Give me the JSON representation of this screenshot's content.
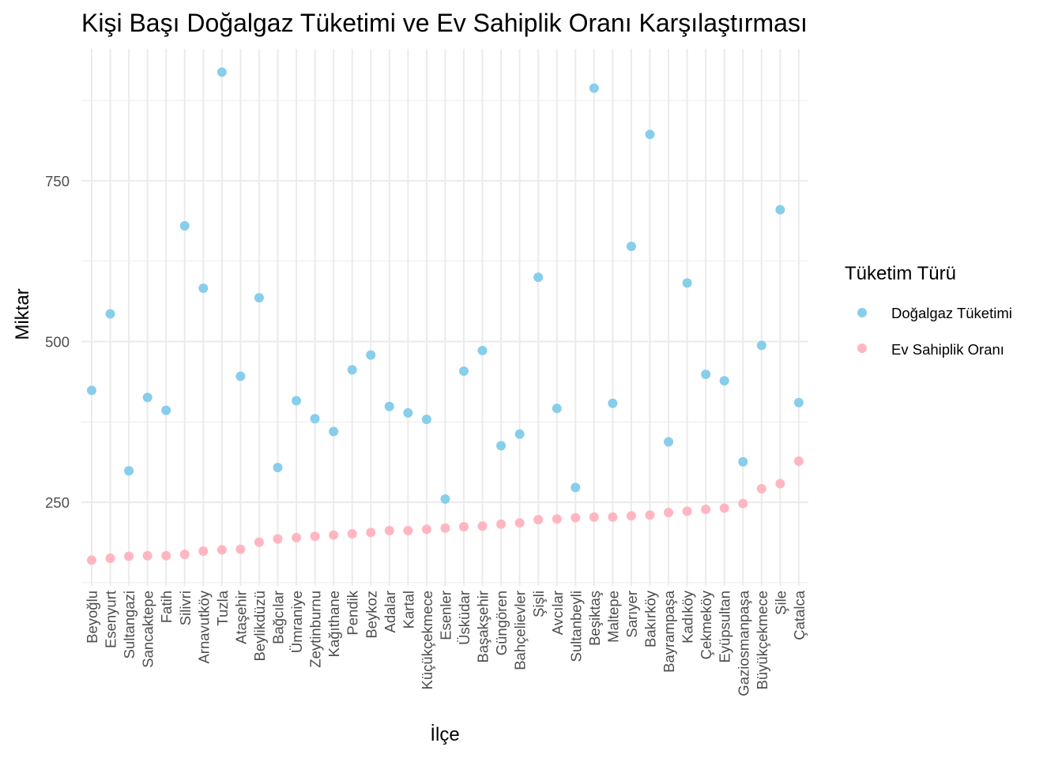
{
  "chart_data": {
    "type": "scatter",
    "title": "Kişi Başı Doğalgaz Tüketimi ve Ev Sahiplik Oranı Karşılaştırması",
    "xlabel": "İlçe",
    "ylabel": "Miktar",
    "ylim": [
      120,
      955
    ],
    "y_ticks": [
      250,
      500,
      750
    ],
    "y_tick_labels": [
      "250",
      "500",
      "750"
    ],
    "grid": true,
    "legend": {
      "title": "Tüketim Türü",
      "position": "right"
    },
    "categories": [
      "Beyoğlu",
      "Esenyurt",
      "Sultangazi",
      "Sancaktepe",
      "Fatih",
      "Silivri",
      "Arnavutköy",
      "Tuzla",
      "Ataşehir",
      "Beylikdüzü",
      "Bağcılar",
      "Ümraniye",
      "Zeytinburnu",
      "Kağıthane",
      "Pendik",
      "Beykoz",
      "Adalar",
      "Kartal",
      "Küçükçekmece",
      "Esenler",
      "Üsküdar",
      "Başakşehir",
      "Güngören",
      "Bahçelievler",
      "Şişli",
      "Avcılar",
      "Sultanbeyli",
      "Beşiktaş",
      "Maltepe",
      "Sarıyer",
      "Bakırköy",
      "Bayrampaşa",
      "Kadıköy",
      "Çekmeköy",
      "Eyüpsultan",
      "Gaziosmanpaşa",
      "Büyükçekmece",
      "Şile",
      "Çatalca"
    ],
    "series": [
      {
        "name": "Doğalgaz Tüketimi",
        "color": "#87CEEB",
        "values": [
          424,
          543,
          299,
          413,
          393,
          680,
          583,
          919,
          446,
          568,
          304,
          408,
          380,
          360,
          456,
          479,
          399,
          389,
          379,
          255,
          454,
          486,
          338,
          356,
          600,
          396,
          273,
          894,
          404,
          648,
          822,
          344,
          591,
          449,
          439,
          313,
          494,
          705,
          405
        ]
      },
      {
        "name": "Ev Sahiplik Oranı",
        "color": "#FFB6C1",
        "values": [
          160,
          163,
          166,
          167,
          167,
          169,
          174,
          176,
          177,
          188,
          193,
          195,
          197,
          199,
          201,
          203,
          206,
          206,
          208,
          210,
          212,
          213,
          216,
          218,
          223,
          224,
          226,
          227,
          227,
          229,
          230,
          234,
          236,
          239,
          241,
          248,
          271,
          279,
          314
        ]
      }
    ]
  }
}
